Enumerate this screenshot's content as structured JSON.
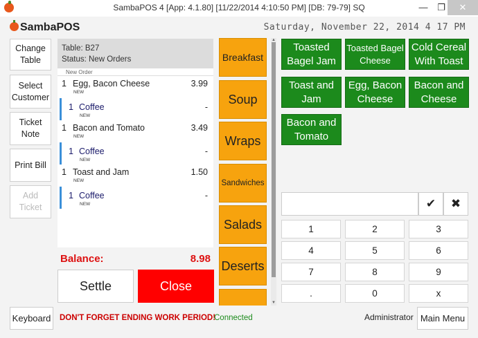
{
  "window": {
    "title": "SambaPOS 4 [App: 4.1.80] [11/22/2014 4:10:50 PM] [DB: 79-79] SQ",
    "minimize": "—",
    "restore": "❐",
    "close": "✕"
  },
  "header": {
    "logo": "SambaPOS",
    "datetime": "Saturday, November 22, 2014 4 17 PM"
  },
  "left_buttons": {
    "change_table": "Change Table",
    "select_customer": "Select Customer",
    "ticket_note": "Ticket Note",
    "print_bill": "Print Bill",
    "add_ticket": "Add Ticket"
  },
  "ticket": {
    "table": "Table: B27",
    "status": "Status: New Orders",
    "group_label": "New Order",
    "orders": [
      {
        "qty": "1",
        "name": "Egg, Bacon Cheese",
        "price": "3.99",
        "tag": "NEW"
      },
      {
        "qty": "1",
        "name": "Coffee",
        "price": "-",
        "tag": "NEW"
      },
      {
        "qty": "1",
        "name": "Bacon and Tomato",
        "price": "3.49",
        "tag": "NEW"
      },
      {
        "qty": "1",
        "name": "Coffee",
        "price": "-",
        "tag": "NEW"
      },
      {
        "qty": "1",
        "name": "Toast and Jam",
        "price": "1.50",
        "tag": "NEW"
      },
      {
        "qty": "1",
        "name": "Coffee",
        "price": "-",
        "tag": "NEW"
      }
    ],
    "balance_label": "Balance:",
    "balance_value": "8.98"
  },
  "actions": {
    "settle": "Settle",
    "close": "Close"
  },
  "categories": [
    "Breakfast",
    "Soup",
    "Wraps",
    "Sandwiches",
    "Salads",
    "Deserts",
    ""
  ],
  "products": [
    "Toasted Bagel Jam",
    "Toasted Bagel Cheese",
    "Cold Cereal With Toast",
    "Toast and Jam",
    "Egg, Bacon Cheese",
    "Bacon and Cheese",
    "Bacon and Tomato"
  ],
  "numpad": {
    "input_value": "",
    "ok_icon": "check-icon",
    "ok_glyph": "✔",
    "clear_icon": "close-icon",
    "clear_glyph": "✖",
    "keys": [
      "1",
      "2",
      "3",
      "4",
      "5",
      "6",
      "7",
      "8",
      "9",
      ".",
      "0",
      "x"
    ]
  },
  "footer": {
    "keyboard": "Keyboard",
    "warning": "DON'T FORGET ENDING WORK PERIOD!",
    "connection": "Connected",
    "user": "Administrator",
    "main_menu": "Main Menu"
  },
  "colors": {
    "category_bg": "#f7a30e",
    "product_bg": "#1c8a1c",
    "close_bg": "#ff0000",
    "balance": "#dd1111",
    "connected": "#1b8a1b"
  }
}
